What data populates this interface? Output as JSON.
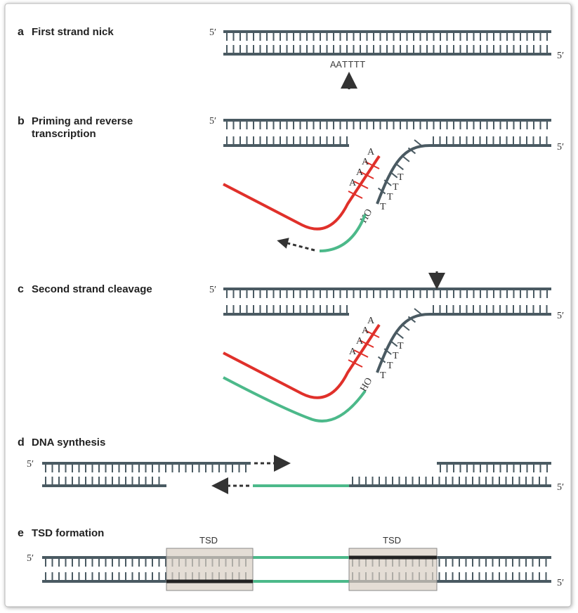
{
  "panels": [
    {
      "letter": "a",
      "title_lines": [
        "First strand nick"
      ],
      "labels": [
        "5′",
        "5′",
        "AATTTT"
      ]
    },
    {
      "letter": "b",
      "title_lines": [
        "Priming and reverse",
        "transcription"
      ],
      "labels": [
        "5′",
        "5′",
        "A",
        "A",
        "A",
        "A",
        "T",
        "T",
        "T",
        "T",
        "HO"
      ]
    },
    {
      "letter": "c",
      "title_lines": [
        "Second strand cleavage"
      ],
      "labels": [
        "5′",
        "5′",
        "A",
        "A",
        "A",
        "A",
        "T",
        "T",
        "T",
        "T",
        "HO"
      ]
    },
    {
      "letter": "d",
      "title_lines": [
        "DNA synthesis"
      ],
      "labels": [
        "5′",
        "5′"
      ]
    },
    {
      "letter": "e",
      "title_lines": [
        "TSD formation"
      ],
      "labels": [
        "5′",
        "5′",
        "TSD",
        "TSD"
      ]
    }
  ]
}
